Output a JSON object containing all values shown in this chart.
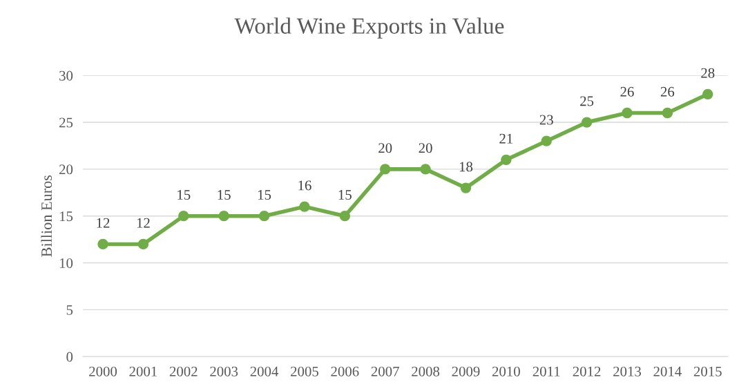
{
  "chart_data": {
    "type": "line",
    "title": "World Wine Exports in Value",
    "ylabel": "Billion Euros",
    "categories": [
      "2000",
      "2001",
      "2002",
      "2003",
      "2004",
      "2005",
      "2006",
      "2007",
      "2008",
      "2009",
      "2010",
      "2011",
      "2012",
      "2013",
      "2014",
      "2015"
    ],
    "series": [
      {
        "color": "#70ad47",
        "values": [
          12,
          12,
          15,
          15,
          15,
          16,
          15,
          20,
          20,
          18,
          21,
          23,
          25,
          26,
          26,
          28
        ]
      }
    ],
    "ylim": [
      0,
      30
    ],
    "yticks": [
      0,
      5,
      10,
      15,
      20,
      25,
      30
    ],
    "grid": "y",
    "marker": "circle",
    "line_style": "solid",
    "data_labels": true,
    "legend": false
  }
}
